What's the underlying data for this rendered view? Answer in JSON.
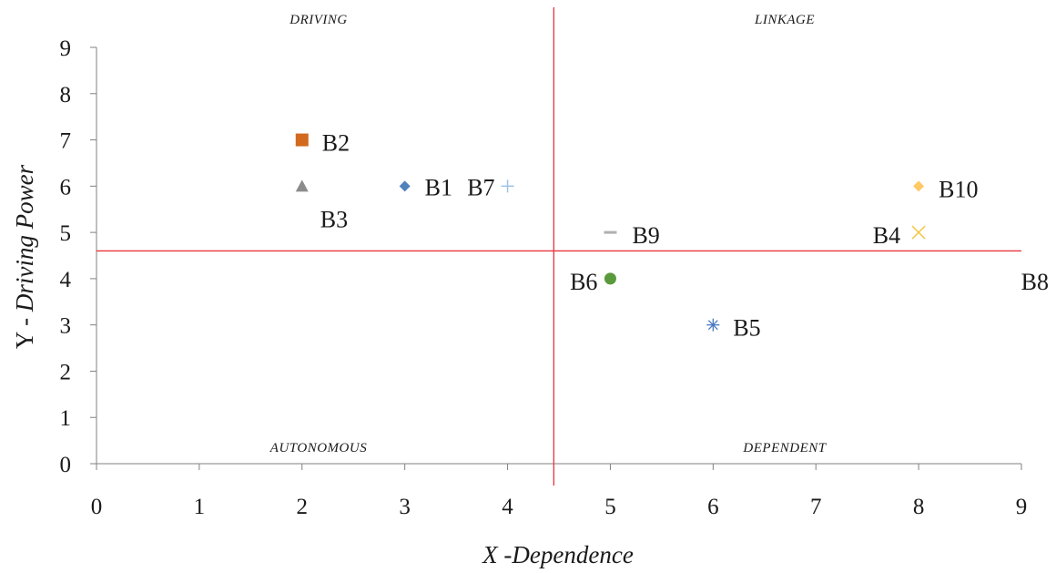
{
  "chart_data": {
    "type": "scatter",
    "title": "",
    "xlabel": "X -Dependence",
    "ylabel_prefix": "Y - ",
    "ylabel_italic": "Driving Power",
    "xlim": [
      0,
      9
    ],
    "ylim": [
      0,
      9
    ],
    "xticks": [
      "0",
      "1",
      "2",
      "3",
      "4",
      "5",
      "6",
      "7",
      "8",
      "9"
    ],
    "yticks": [
      "0",
      "1",
      "2",
      "3",
      "4",
      "5",
      "6",
      "7",
      "8",
      "9"
    ],
    "grid": false,
    "legend": "none",
    "divider": {
      "x": 4.45,
      "y": 4.6,
      "color": "#e8343c"
    },
    "quadrants": {
      "top_left": "DRIVING",
      "top_right": "LINKAGE",
      "bottom_left": "AUTONOMOUS",
      "bottom_right": "DEPENDENT"
    },
    "points": [
      {
        "name": "B1",
        "x": 3,
        "y": 6,
        "marker": "diamond",
        "color": "#4f81bd"
      },
      {
        "name": "B2",
        "x": 2,
        "y": 7,
        "marker": "square",
        "color": "#d2691e"
      },
      {
        "name": "B3",
        "x": 2,
        "y": 6,
        "marker": "triangle",
        "color": "#8c8c8c"
      },
      {
        "name": "B4",
        "x": 8,
        "y": 5,
        "marker": "x",
        "color": "#f4c542"
      },
      {
        "name": "B5",
        "x": 6,
        "y": 3,
        "marker": "star",
        "color": "#4a78c2"
      },
      {
        "name": "B6",
        "x": 5,
        "y": 4,
        "marker": "circle",
        "color": "#5b9a3c"
      },
      {
        "name": "B7",
        "x": 4,
        "y": 6,
        "marker": "plus",
        "color": "#9ec3e6"
      },
      {
        "name": "B8",
        "x": 9,
        "y": 4,
        "marker": "none",
        "color": "#ffffff"
      },
      {
        "name": "B9",
        "x": 5,
        "y": 5,
        "marker": "dash",
        "color": "#b0b0b0"
      },
      {
        "name": "B10",
        "x": 8,
        "y": 6,
        "marker": "diamond",
        "color": "#ffc966"
      }
    ]
  }
}
